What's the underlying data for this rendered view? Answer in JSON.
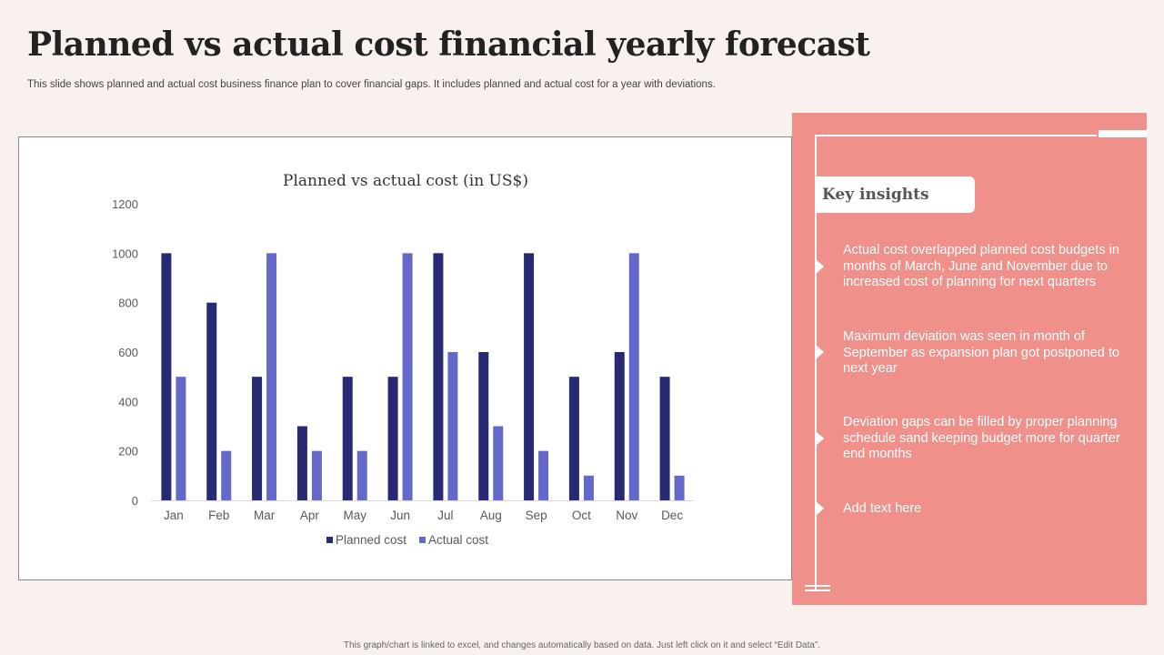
{
  "page": {
    "title": "Planned vs actual cost financial yearly forecast",
    "subtitle": "This slide shows planned and actual cost business finance plan to cover financial gaps. It includes planned and actual cost for a year with deviations.",
    "footer": "This graph/chart is linked to excel, and changes automatically based on data. Just left click on it and select “Edit Data”."
  },
  "colors": {
    "planned": "#272a72",
    "actual": "#6468c8",
    "insights_bg": "#ef908b"
  },
  "chart_data": {
    "type": "bar",
    "title": "Planned vs actual cost (in US$)",
    "xlabel": "",
    "ylabel": "",
    "ylim": [
      0,
      1200
    ],
    "yticks": [
      0,
      200,
      400,
      600,
      800,
      1000,
      1200
    ],
    "categories": [
      "Jan",
      "Feb",
      "Mar",
      "Apr",
      "May",
      "Jun",
      "Jul",
      "Aug",
      "Sep",
      "Oct",
      "Nov",
      "Dec"
    ],
    "series": [
      {
        "name": "Planned cost",
        "values": [
          1000,
          800,
          500,
          300,
          500,
          500,
          1000,
          600,
          1000,
          500,
          600,
          500
        ]
      },
      {
        "name": "Actual cost",
        "values": [
          500,
          200,
          1000,
          200,
          200,
          1000,
          600,
          300,
          200,
          100,
          1000,
          100
        ]
      }
    ],
    "legend": "bottom"
  },
  "insights": {
    "heading": "Key insights",
    "items": [
      "Actual cost overlapped planned cost budgets in months of March, June and November due to increased cost of planning for next quarters",
      "Maximum deviation was seen in month of September as expansion plan got postponed to next year",
      "Deviation gaps can be filled by proper planning schedule sand keeping budget more for quarter end months",
      "Add text here"
    ]
  }
}
